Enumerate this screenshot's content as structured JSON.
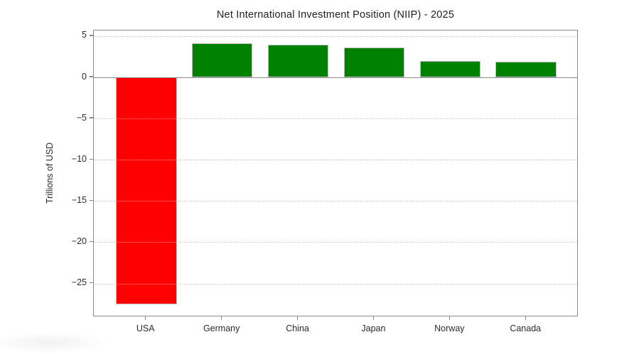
{
  "chart_data": {
    "type": "bar",
    "title": "Net International Investment Position (NIIP) - 2025",
    "xlabel": "",
    "ylabel": "Trillions of USD",
    "categories": [
      "USA",
      "Germany",
      "China",
      "Japan",
      "Norway",
      "Canada"
    ],
    "values": [
      -27.5,
      4.1,
      4.0,
      3.6,
      2.0,
      1.9
    ],
    "bar_colors": [
      "#ff0000",
      "#008000",
      "#008000",
      "#008000",
      "#008000",
      "#008000"
    ],
    "positive_color": "#008000",
    "negative_color": "#ff0000",
    "yticks": [
      5,
      0,
      -5,
      -10,
      -15,
      -20,
      -25
    ],
    "ytick_labels": [
      "5",
      "0",
      "−5",
      "−10",
      "−15",
      "−20",
      "−25"
    ],
    "ylim": [
      -29.08,
      5.68
    ],
    "bar_width_ratio": 0.8,
    "x_slots": 6.38,
    "x_first_center": 0.69,
    "grid": "horizontal-dotted",
    "gridline_color": "#c9c9c9",
    "zero_line_color": "#8a8a8a",
    "axis_color": "#8a8a8a",
    "legend": "none",
    "background_color": "#ffffff"
  }
}
